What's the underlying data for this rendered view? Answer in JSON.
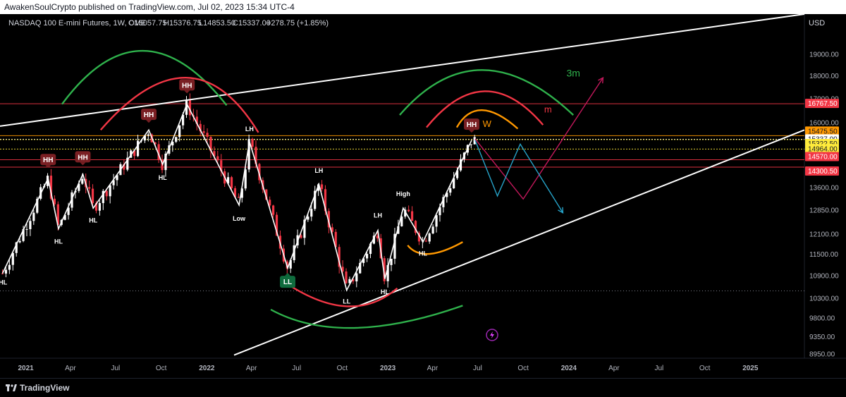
{
  "header": {
    "publisher_line": "AwakenSoulCrypto published on TradingView.com, Jul 02, 2023 15:34 UTC-4"
  },
  "footer": {
    "brand": "TradingView"
  },
  "colors": {
    "background": "#000000",
    "bull": "#ffffff",
    "bear": "#f23645",
    "green_arc": "#2fb24c",
    "red_arc": "#f23645",
    "orange_arc": "#ff9800",
    "projection_red": "#c2185b",
    "projection_blue": "#26a3c9",
    "hh_label": "#7a1f23",
    "ll_label": "#0f6b3d"
  },
  "chart_data": {
    "type": "candlestick",
    "title": "NASDAQ 100 E-mini Futures, 1W, CME",
    "ohlc_readout": {
      "open": "O15057.75",
      "high": "H15376.75",
      "low": "L14853.50",
      "close": "C15337.00",
      "change": "+278.75 (+1.85%)"
    },
    "currency": "USD",
    "x_axis_labels": [
      {
        "date": "2021-01-01",
        "label": "2021"
      },
      {
        "date": "2021-04-01",
        "label": "Apr"
      },
      {
        "date": "2021-07-01",
        "label": "Jul"
      },
      {
        "date": "2021-10-01",
        "label": "Oct"
      },
      {
        "date": "2022-01-01",
        "label": "2022"
      },
      {
        "date": "2022-04-01",
        "label": "Apr"
      },
      {
        "date": "2022-07-01",
        "label": "Jul"
      },
      {
        "date": "2022-10-01",
        "label": "Oct"
      },
      {
        "date": "2023-01-01",
        "label": "2023"
      },
      {
        "date": "2023-04-01",
        "label": "Apr"
      },
      {
        "date": "2023-07-01",
        "label": "Jul"
      },
      {
        "date": "2023-10-01",
        "label": "Oct"
      },
      {
        "date": "2024-01-01",
        "label": "2024"
      },
      {
        "date": "2024-04-01",
        "label": "Apr"
      },
      {
        "date": "2024-07-01",
        "label": "Jul"
      },
      {
        "date": "2024-10-01",
        "label": "Oct"
      },
      {
        "date": "2025-01-01",
        "label": "2025"
      }
    ],
    "x_range": [
      "2020-11-10",
      "2025-04-20"
    ],
    "y_scale": "log",
    "y_range": [
      8850,
      21000
    ],
    "y_ticks": [
      19000,
      18000,
      17000,
      16000,
      15337,
      13600,
      12850,
      12100,
      11500,
      10900,
      10300,
      9800,
      9350,
      8950
    ],
    "y_tick_labels": [
      "19000.00",
      "18000.00",
      "17000.00",
      "16000.00",
      "15337.00",
      "13600.00",
      "12850.00",
      "12100.00",
      "11500.00",
      "10900.00",
      "10300.00",
      "9800.00",
      "9350.00",
      "8950.00"
    ],
    "price_levels": [
      {
        "value": 16767.5,
        "label": "16767.50",
        "color": "#f23645"
      },
      {
        "value": 15475.5,
        "label": "15475.50",
        "color": "#ff9800"
      },
      {
        "value": 15337.0,
        "label": "15337.00",
        "color": "#ffffff"
      },
      {
        "value": 15322.5,
        "label": "15322.50",
        "color": "#ffeb3b"
      },
      {
        "value": 14964.0,
        "label": "14964.00",
        "color": "#ffeb3b"
      },
      {
        "value": 14570.0,
        "label": "14570.00",
        "color": "#f23645"
      },
      {
        "value": 14300.5,
        "label": "14300.50",
        "color": "#f23645"
      }
    ],
    "swing_path": [
      {
        "d": "2020-11-15",
        "v": 10950
      },
      {
        "d": "2021-02-15",
        "v": 13900
      },
      {
        "d": "2021-03-08",
        "v": 12250
      },
      {
        "d": "2021-04-26",
        "v": 14050
      },
      {
        "d": "2021-05-17",
        "v": 12900
      },
      {
        "d": "2021-09-06",
        "v": 15700
      },
      {
        "d": "2021-10-04",
        "v": 14400
      },
      {
        "d": "2021-11-22",
        "v": 16750
      },
      {
        "d": "2022-03-07",
        "v": 13000
      },
      {
        "d": "2022-03-28",
        "v": 15250
      },
      {
        "d": "2022-06-13",
        "v": 11100
      },
      {
        "d": "2022-08-15",
        "v": 13700
      },
      {
        "d": "2022-10-10",
        "v": 10500
      },
      {
        "d": "2022-12-12",
        "v": 12200
      },
      {
        "d": "2022-12-26",
        "v": 10800
      },
      {
        "d": "2023-02-01",
        "v": 12900
      },
      {
        "d": "2023-03-13",
        "v": 11850
      },
      {
        "d": "2023-06-19",
        "v": 15300
      }
    ],
    "annotations": [
      {
        "text": "HL",
        "d": "2020-11-16",
        "v": 10650,
        "kind": "text"
      },
      {
        "text": "HH",
        "d": "2021-02-15",
        "v": 14550,
        "kind": "hh"
      },
      {
        "text": "HL",
        "d": "2021-03-08",
        "v": 11800,
        "kind": "text"
      },
      {
        "text": "HH",
        "d": "2021-04-26",
        "v": 14650,
        "kind": "hh"
      },
      {
        "text": "HL",
        "d": "2021-05-17",
        "v": 12450,
        "kind": "text"
      },
      {
        "text": "HH",
        "d": "2021-09-06",
        "v": 16300,
        "kind": "hh"
      },
      {
        "text": "HL",
        "d": "2021-10-04",
        "v": 13850,
        "kind": "text"
      },
      {
        "text": "HH",
        "d": "2021-11-22",
        "v": 17550,
        "kind": "hh"
      },
      {
        "text": "LH",
        "d": "2022-03-28",
        "v": 15650,
        "kind": "text"
      },
      {
        "text": "Low",
        "d": "2022-03-07",
        "v": 12500,
        "kind": "text"
      },
      {
        "text": "LL",
        "d": "2022-06-13",
        "v": 10750,
        "kind": "ll"
      },
      {
        "text": "LH",
        "d": "2022-08-15",
        "v": 14100,
        "kind": "text"
      },
      {
        "text": "LL",
        "d": "2022-10-10",
        "v": 10150,
        "kind": "text"
      },
      {
        "text": "HL",
        "d": "2022-12-26",
        "v": 10400,
        "kind": "text"
      },
      {
        "text": "LH",
        "d": "2022-12-12",
        "v": 12600,
        "kind": "text"
      },
      {
        "text": "High",
        "d": "2023-02-01",
        "v": 13300,
        "kind": "text"
      },
      {
        "text": "HL",
        "d": "2023-03-13",
        "v": 11450,
        "kind": "text"
      },
      {
        "text": "HH",
        "d": "2023-06-19",
        "v": 15900,
        "kind": "hh"
      },
      {
        "text": "W",
        "d": "2023-07-20",
        "v": 15820,
        "kind": "orange"
      },
      {
        "text": "m",
        "d": "2023-11-20",
        "v": 16400,
        "kind": "red"
      },
      {
        "text": "3m",
        "d": "2024-01-10",
        "v": 17950,
        "kind": "green"
      }
    ],
    "trendlines": [
      {
        "from": {
          "d": "2020-11-10",
          "v": 15850
        },
        "to": {
          "d": "2025-04-20",
          "v": 21000
        },
        "color": "#ffffff"
      },
      {
        "from": {
          "d": "2022-02-25",
          "v": 8920
        },
        "to": {
          "d": "2025-04-20",
          "v": 15700
        },
        "color": "#ffffff"
      }
    ],
    "arcs": [
      {
        "from": {
          "d": "2021-03-15",
          "v": 16750
        },
        "top": {
          "d": "2021-08-25",
          "v": 19150
        },
        "to": {
          "d": "2022-02-10",
          "v": 16700
        },
        "color": "#2fb24c",
        "dir": "up"
      },
      {
        "from": {
          "d": "2021-06-01",
          "v": 15700
        },
        "top": {
          "d": "2021-11-20",
          "v": 17900
        },
        "to": {
          "d": "2022-04-15",
          "v": 15600
        },
        "color": "#f23645",
        "dir": "up"
      },
      {
        "from": {
          "d": "2022-05-10",
          "v": 10000
        },
        "top": {
          "d": "2022-10-25",
          "v": 9550
        },
        "to": {
          "d": "2023-06-01",
          "v": 10100
        },
        "color": "#2fb24c",
        "dir": "down"
      },
      {
        "from": {
          "d": "2022-06-20",
          "v": 10600
        },
        "top": {
          "d": "2022-10-15",
          "v": 10080
        },
        "to": {
          "d": "2023-01-20",
          "v": 10550
        },
        "color": "#f23645",
        "dir": "down"
      },
      {
        "from": {
          "d": "2023-02-10",
          "v": 11750
        },
        "top": {
          "d": "2023-03-25",
          "v": 11500
        },
        "to": {
          "d": "2023-06-01",
          "v": 11850
        },
        "color": "#ff9800",
        "dir": "down"
      },
      {
        "from": {
          "d": "2023-01-25",
          "v": 16300
        },
        "top": {
          "d": "2023-07-10",
          "v": 18250
        },
        "to": {
          "d": "2024-01-10",
          "v": 16300
        },
        "color": "#2fb24c",
        "dir": "up"
      },
      {
        "from": {
          "d": "2023-03-20",
          "v": 15800
        },
        "top": {
          "d": "2023-07-15",
          "v": 17300
        },
        "to": {
          "d": "2023-11-10",
          "v": 15900
        },
        "color": "#f23645",
        "dir": "up"
      },
      {
        "from": {
          "d": "2023-05-20",
          "v": 15800
        },
        "top": {
          "d": "2023-07-10",
          "v": 16500
        },
        "to": {
          "d": "2023-09-20",
          "v": 15750
        },
        "color": "#ff9800",
        "dir": "up"
      }
    ],
    "projections": [
      {
        "color": "#c2185b",
        "points": [
          {
            "d": "2023-06-26",
            "v": 15350
          },
          {
            "d": "2023-10-01",
            "v": 13200
          },
          {
            "d": "2024-03-10",
            "v": 17900
          }
        ]
      },
      {
        "color": "#26a3c9",
        "points": [
          {
            "d": "2023-06-26",
            "v": 15300
          },
          {
            "d": "2023-08-10",
            "v": 13300
          },
          {
            "d": "2023-09-25",
            "v": 15150
          },
          {
            "d": "2023-12-20",
            "v": 12750
          }
        ]
      }
    ],
    "dotted_support": 10480
  }
}
